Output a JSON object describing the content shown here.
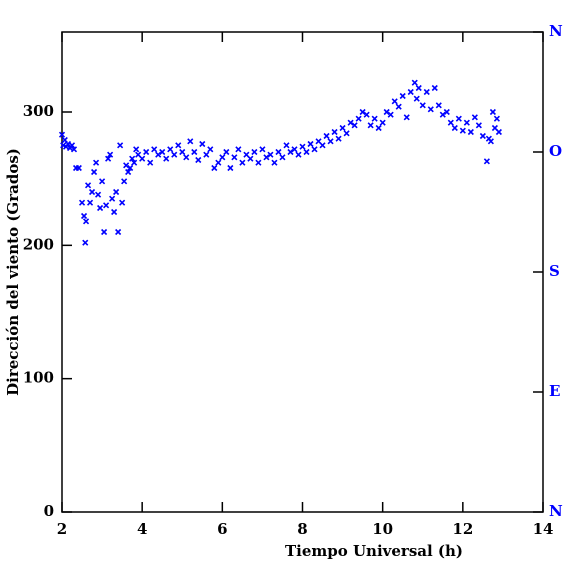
{
  "chart_data": {
    "type": "scatter",
    "xlabel": "Tiempo Universal (h)",
    "ylabel": "Dirección del viento (Grados)",
    "xlim": [
      2,
      14
    ],
    "xticks": [
      2,
      4,
      6,
      8,
      10,
      12,
      14
    ],
    "ylim": [
      0,
      360
    ],
    "yticks": [
      0,
      100,
      200,
      300
    ],
    "y2lim": [
      0,
      360
    ],
    "y2ticks": [
      {
        "value": 0,
        "label": "N"
      },
      {
        "value": 90,
        "label": "E"
      },
      {
        "value": 180,
        "label": "S"
      },
      {
        "value": 270,
        "label": "O"
      },
      {
        "value": 360,
        "label": "N"
      }
    ],
    "color": "#0000ff",
    "x": [
      2.0,
      2.03,
      2.07,
      2.1,
      2.15,
      2.2,
      2.25,
      2.3,
      2.35,
      2.42,
      2.5,
      2.55,
      2.58,
      2.6,
      2.65,
      2.7,
      2.75,
      2.8,
      2.85,
      2.9,
      2.95,
      3.0,
      3.05,
      3.1,
      3.15,
      3.2,
      3.25,
      3.3,
      3.35,
      3.4,
      3.45,
      3.5,
      3.55,
      3.6,
      3.65,
      3.7,
      3.75,
      3.8,
      3.85,
      3.9,
      4.0,
      4.1,
      4.2,
      4.3,
      4.4,
      4.5,
      4.6,
      4.7,
      4.8,
      4.9,
      5.0,
      5.1,
      5.2,
      5.3,
      5.4,
      5.5,
      5.6,
      5.7,
      5.8,
      5.9,
      6.0,
      6.1,
      6.2,
      6.3,
      6.4,
      6.5,
      6.6,
      6.7,
      6.8,
      6.9,
      7.0,
      7.1,
      7.2,
      7.3,
      7.4,
      7.5,
      7.6,
      7.7,
      7.8,
      7.9,
      8.0,
      8.1,
      8.2,
      8.3,
      8.4,
      8.5,
      8.6,
      8.7,
      8.8,
      8.9,
      9.0,
      9.1,
      9.2,
      9.3,
      9.4,
      9.5,
      9.6,
      9.7,
      9.8,
      9.9,
      10.0,
      10.1,
      10.2,
      10.3,
      10.4,
      10.5,
      10.6,
      10.7,
      10.8,
      10.85,
      10.9,
      11.0,
      11.1,
      11.2,
      11.3,
      11.4,
      11.5,
      11.6,
      11.7,
      11.8,
      11.9,
      12.0,
      12.1,
      12.2,
      12.3,
      12.4,
      12.5,
      12.6,
      12.65,
      12.7,
      12.75,
      12.8,
      12.85,
      12.9
    ],
    "values": [
      283,
      275,
      279,
      274,
      276,
      273,
      275,
      272,
      258,
      258,
      232,
      222,
      202,
      218,
      245,
      232,
      240,
      255,
      262,
      238,
      228,
      248,
      210,
      230,
      265,
      268,
      235,
      225,
      240,
      210,
      275,
      232,
      248,
      260,
      255,
      258,
      265,
      262,
      272,
      268,
      265,
      270,
      262,
      272,
      268,
      270,
      265,
      272,
      268,
      275,
      270,
      266,
      278,
      270,
      264,
      276,
      268,
      272,
      258,
      262,
      266,
      270,
      258,
      266,
      272,
      262,
      268,
      265,
      270,
      262,
      272,
      266,
      268,
      262,
      270,
      266,
      275,
      270,
      272,
      268,
      274,
      270,
      276,
      272,
      278,
      275,
      282,
      278,
      285,
      280,
      288,
      284,
      292,
      290,
      295,
      300,
      298,
      290,
      295,
      288,
      292,
      300,
      298,
      308,
      304,
      312,
      296,
      315,
      322,
      310,
      318,
      305,
      315,
      302,
      318,
      305,
      298,
      300,
      292,
      288,
      295,
      286,
      292,
      285,
      296,
      290,
      282,
      263,
      280,
      278,
      300,
      288,
      295,
      285
    ]
  }
}
